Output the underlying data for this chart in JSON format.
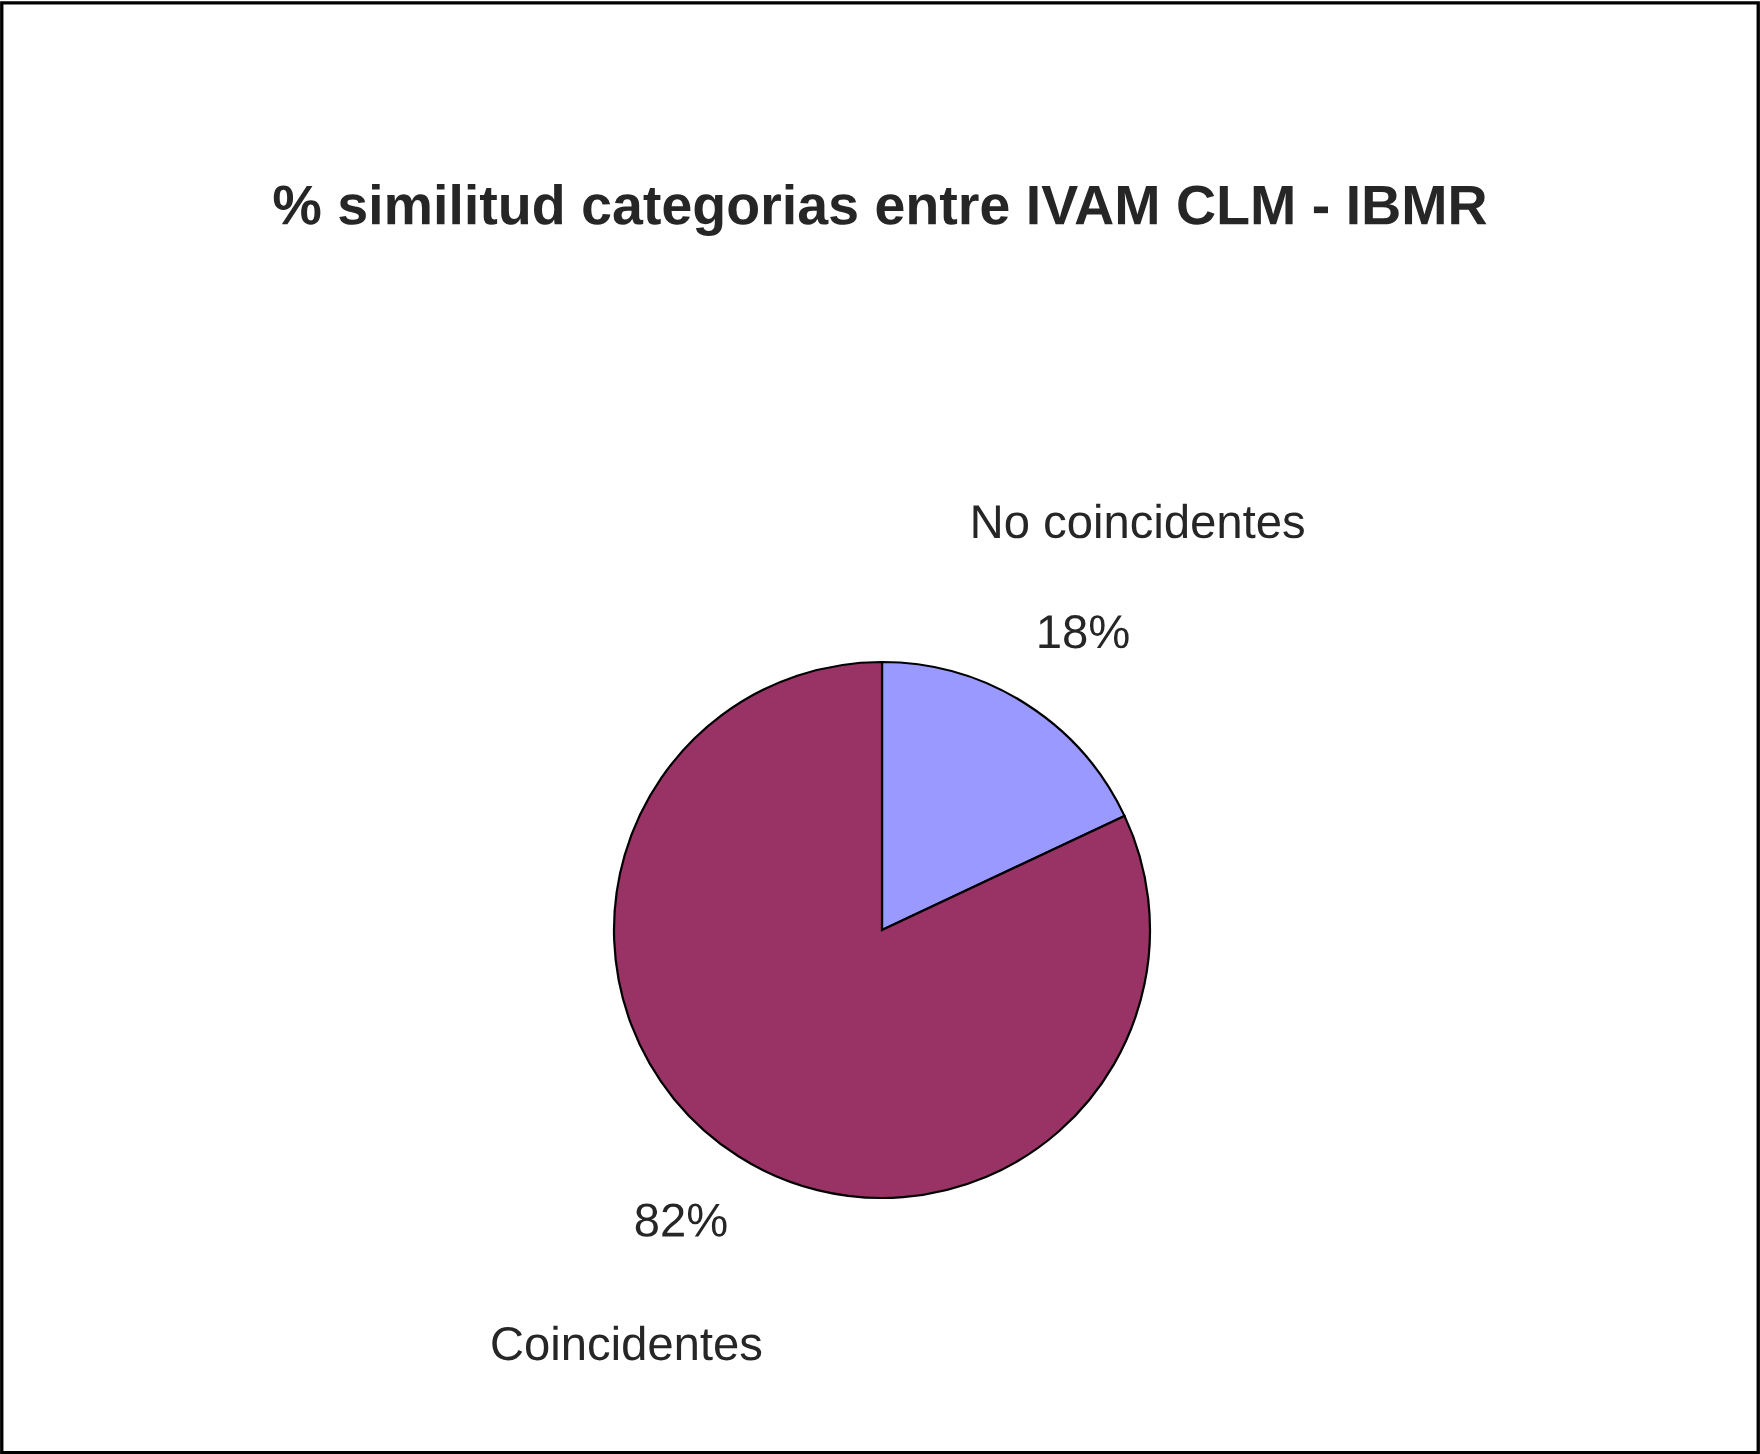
{
  "chart_data": {
    "type": "pie",
    "title": "% similitud categorias entre IVAM CLM - IBMR",
    "categories": [
      "No coincidentes",
      "Coincidentes"
    ],
    "values": [
      18,
      82
    ],
    "colors": [
      "#9999ff",
      "#993366"
    ],
    "value_labels": [
      "18%",
      "82%"
    ],
    "legend": false
  }
}
